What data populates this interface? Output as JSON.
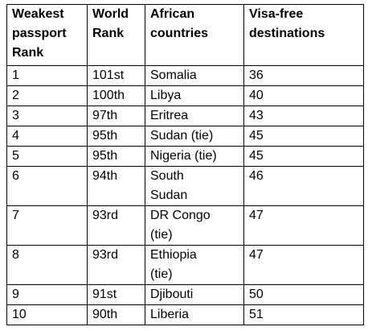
{
  "table": {
    "header": [
      "Weakest\npassport\nRank",
      "World\nRank",
      "African\ncountries",
      "Visa-free\ndestinations"
    ],
    "rows": [
      [
        "1",
        "101st",
        "Somalia",
        "36"
      ],
      [
        "2",
        "100th",
        "Libya",
        "40"
      ],
      [
        "3",
        "97th",
        "Eritrea",
        "43"
      ],
      [
        "4",
        "95th",
        "Sudan (tie)",
        "45"
      ],
      [
        "5",
        "95th",
        "Nigeria (tie)",
        "45"
      ],
      [
        "6",
        "94th",
        "South\nSudan",
        "46"
      ],
      [
        "7",
        "93rd",
        "DR Congo\n(tie)",
        "47"
      ],
      [
        "8",
        "93rd",
        "Ethiopia\n(tie)",
        "47"
      ],
      [
        "9",
        "91st",
        "Djibouti",
        "50"
      ],
      [
        "10",
        "90th",
        "Liberia",
        "51"
      ]
    ]
  }
}
